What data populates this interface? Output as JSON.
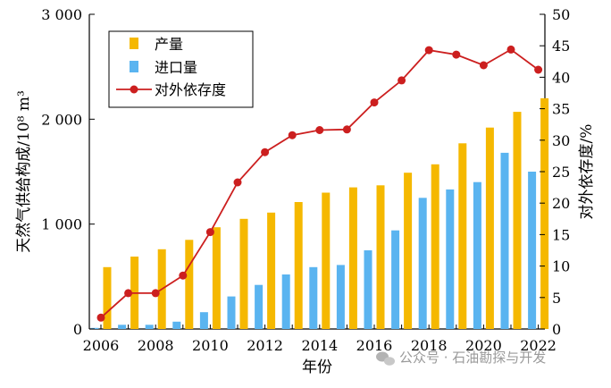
{
  "chart_data": {
    "type": "bar",
    "x_label": "年份",
    "y_left_label": "天然气供给构成/10⁸ m³",
    "y_right_label": "对外依存度/%",
    "y_left_lim": [
      0,
      3000
    ],
    "y_left_ticks": [
      "0",
      "1 000",
      "2 000",
      "3 000"
    ],
    "y_right_lim": [
      0,
      50
    ],
    "y_right_ticks": [
      "0",
      "5",
      "10",
      "15",
      "20",
      "25",
      "30",
      "35",
      "40",
      "45",
      "50"
    ],
    "x_ticks": [
      "2006",
      "2008",
      "2010",
      "2012",
      "2014",
      "2016",
      "2018",
      "2020",
      "2022"
    ],
    "years": [
      2006,
      2007,
      2008,
      2009,
      2010,
      2011,
      2012,
      2013,
      2014,
      2015,
      2016,
      2017,
      2018,
      2019,
      2020,
      2021,
      2022
    ],
    "series": [
      {
        "name": "产量",
        "kind": "bar",
        "axis": "left",
        "color": "#f5b800",
        "values": [
          590,
          690,
          760,
          850,
          970,
          1050,
          1110,
          1210,
          1300,
          1350,
          1370,
          1490,
          1570,
          1770,
          1920,
          2070,
          2200
        ]
      },
      {
        "name": "进口量",
        "kind": "bar",
        "axis": "left",
        "color": "#5ab4f0",
        "values": [
          10,
          40,
          40,
          70,
          160,
          310,
          420,
          520,
          590,
          610,
          750,
          940,
          1250,
          1330,
          1400,
          1680,
          1500
        ]
      },
      {
        "name": "对外依存度",
        "kind": "line",
        "axis": "right",
        "color": "#cc1f1f",
        "values": [
          1.8,
          5.7,
          5.7,
          8.5,
          15.4,
          23.3,
          28.1,
          30.8,
          31.6,
          31.7,
          36.0,
          39.5,
          44.3,
          43.6,
          41.9,
          44.4,
          41.2
        ]
      }
    ],
    "legend": "top-left",
    "grid": false
  },
  "watermark": "公众号 · 石油勘探与开发"
}
